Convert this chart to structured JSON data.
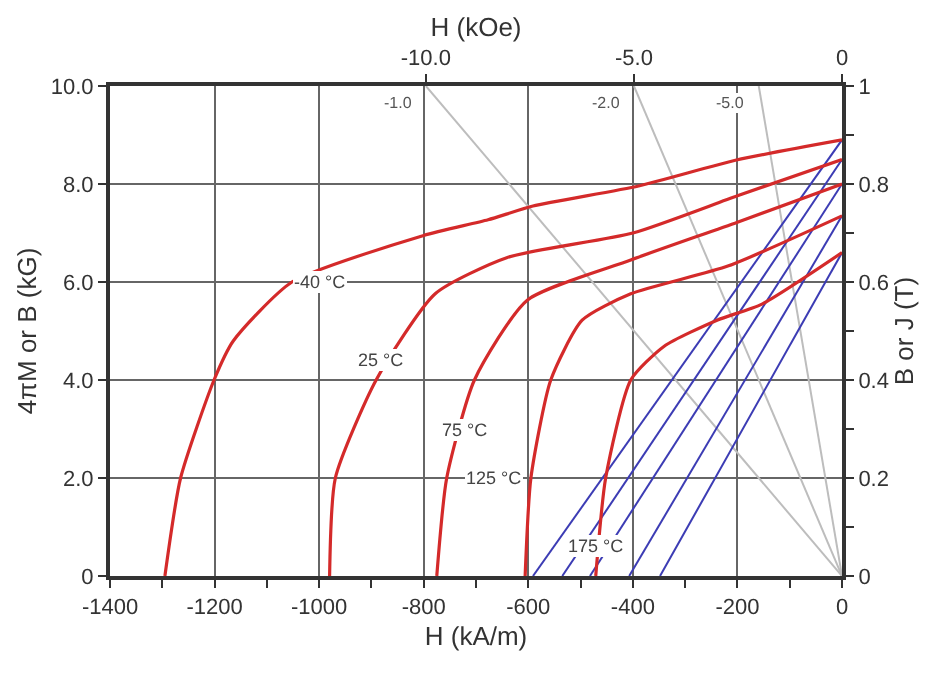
{
  "chart_data": {
    "type": "line",
    "xlabel": "H (kA/m)",
    "ylabel": "4πM or B (kG)",
    "y2label": "B or J (T)",
    "x2label": "H (kOe)",
    "xlim": [
      -1400,
      0
    ],
    "xticks": [
      -1400,
      {
        "value": -1300,
        "label": null
      },
      -1200,
      {
        "value": -1100,
        "label": null
      },
      -1000,
      {
        "value": -900,
        "label": null
      },
      -800,
      {
        "value": -700,
        "label": null
      },
      -600,
      {
        "value": -500,
        "label": null
      },
      -400,
      {
        "value": -300,
        "label": null
      },
      -200,
      {
        "value": -100,
        "label": null
      },
      0
    ],
    "ylim": [
      0,
      10
    ],
    "yticks": [
      0,
      {
        "value": 2,
        "label": "2.0"
      },
      {
        "value": 4,
        "label": "4.0"
      },
      {
        "value": 6,
        "label": "6.0"
      },
      {
        "value": 8,
        "label": "8.0"
      },
      {
        "value": 10,
        "label": "10.0"
      }
    ],
    "y2lim": [
      0,
      1
    ],
    "y2ticks": [
      0,
      {
        "value": 0.1,
        "label": null
      },
      {
        "value": 0.2,
        "label": "0.2"
      },
      {
        "value": 0.3,
        "label": null
      },
      {
        "value": 0.4,
        "label": "0.4"
      },
      {
        "value": 0.5,
        "label": null
      },
      {
        "value": 0.6,
        "label": "0.6"
      },
      {
        "value": 0.7,
        "label": null
      },
      {
        "value": 0.8,
        "label": "0.8"
      },
      {
        "value": 0.9,
        "label": null
      },
      1
    ],
    "x2lim": [
      -17.59,
      0
    ],
    "x2ticks": [
      {
        "value": -10,
        "label": "-10.0"
      },
      {
        "value": -5,
        "label": "-5.0"
      },
      0
    ],
    "grid": true,
    "marker": "none",
    "line_style": "solid",
    "series": [
      {
        "color": "#bdbdbd",
        "x": [
          -795.8,
          0
        ],
        "values": [
          10,
          0
        ]
      },
      {
        "color": "#bdbdbd",
        "x": [
          -397.9,
          0
        ],
        "values": [
          10,
          0
        ]
      },
      {
        "color": "#bdbdbd",
        "x": [
          -159.2,
          0
        ],
        "values": [
          10,
          0
        ]
      },
      {
        "color": "#3c3cb4",
        "x": [
          -591,
          0
        ],
        "values": [
          0,
          8.9
        ]
      },
      {
        "color": "#3c3cb4",
        "x": [
          -535,
          0
        ],
        "values": [
          0,
          8.5
        ]
      },
      {
        "color": "#3c3cb4",
        "x": [
          -482,
          0
        ],
        "values": [
          0,
          8.0
        ]
      },
      {
        "color": "#3c3cb4",
        "x": [
          -407,
          0
        ],
        "values": [
          0,
          7.35
        ]
      },
      {
        "color": "#3c3cb4",
        "x": [
          -348,
          0
        ],
        "values": [
          0,
          6.6
        ]
      },
      {
        "color": "#d42a2a",
        "x": [
          -1295,
          -1265,
          -1201,
          -1164,
          -1052,
          -800,
          -677,
          -591,
          -389,
          -202,
          0
        ],
        "values": [
          0,
          2,
          4,
          4.8,
          6,
          6.95,
          7.27,
          7.55,
          7.96,
          8.49,
          8.9
        ]
      },
      {
        "color": "#d42a2a",
        "x": [
          -980,
          -969,
          -891,
          -778,
          -640,
          -400,
          -200,
          0
        ],
        "values": [
          0,
          2,
          4,
          5.76,
          6.5,
          7.0,
          7.76,
          8.5
        ]
      },
      {
        "color": "#d42a2a",
        "x": [
          -775,
          -756,
          -703,
          -602,
          -404,
          -200,
          0
        ],
        "values": [
          0,
          2,
          4,
          5.63,
          6.45,
          7.22,
          8.0
        ]
      },
      {
        "color": "#d42a2a",
        "x": [
          -606,
          -595,
          -557,
          -497,
          -404,
          -217,
          0
        ],
        "values": [
          0,
          2,
          4,
          5.22,
          5.76,
          6.33,
          7.35
        ]
      },
      {
        "color": "#d42a2a",
        "x": [
          -471,
          -452,
          -404,
          -340,
          -239,
          -153,
          0
        ],
        "values": [
          0,
          2,
          4,
          4.69,
          5.22,
          5.55,
          6.6
        ]
      }
    ],
    "annotations": [
      {
        "text": "-40 °C",
        "x": -1000,
        "y": 6.0
      },
      {
        "text": "25 °C",
        "x": -880,
        "y": 4.4
      },
      {
        "text": "75 °C",
        "x": -720,
        "y": 3.0
      },
      {
        "text": "125 °C",
        "x": -665,
        "y": 2.0
      },
      {
        "text": "175 °C",
        "x": -470,
        "y": 0.6
      },
      {
        "text": "-1.0",
        "x": -795.8,
        "y": 10
      },
      {
        "text": "-2.0",
        "x": -397.9,
        "y": 10
      },
      {
        "text": "-5.0",
        "x": -159.2,
        "y": 10
      }
    ]
  }
}
